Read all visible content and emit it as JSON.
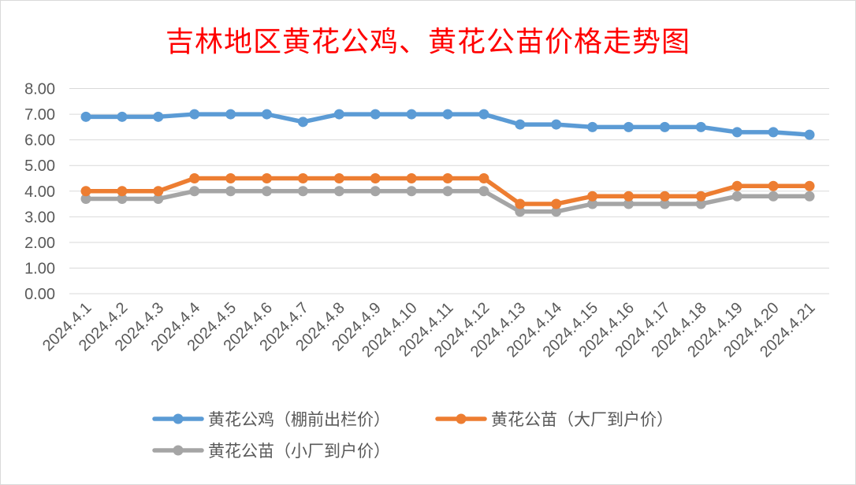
{
  "chart_data": {
    "type": "line",
    "title": "吉林地区黄花公鸡、黄花公苗价格走势图",
    "x": [
      "2024.4.1",
      "2024.4.2",
      "2024.4.3",
      "2024.4.4",
      "2024.4.5",
      "2024.4.6",
      "2024.4.7",
      "2024.4.8",
      "2024.4.9",
      "2024.4.10",
      "2024.4.11",
      "2024.4.12",
      "2024.4.13",
      "2024.4.14",
      "2024.4.15",
      "2024.4.16",
      "2024.4.17",
      "2024.4.18",
      "2024.4.19",
      "2024.4.20",
      "2024.4.21"
    ],
    "y_ticks": [
      "0.00",
      "1.00",
      "2.00",
      "3.00",
      "4.00",
      "5.00",
      "6.00",
      "7.00",
      "8.00"
    ],
    "ylim": [
      0,
      8
    ],
    "grid": "horizontal",
    "legend_position": "bottom",
    "series": [
      {
        "name": "黄花公鸡（棚前出栏价）",
        "color": "#5b9bd5",
        "values": [
          6.9,
          6.9,
          6.9,
          7.0,
          7.0,
          7.0,
          6.7,
          7.0,
          7.0,
          7.0,
          7.0,
          7.0,
          6.6,
          6.6,
          6.5,
          6.5,
          6.5,
          6.5,
          6.3,
          6.3,
          6.2
        ]
      },
      {
        "name": "黄花公苗（大厂到户价）",
        "color": "#ed7d31",
        "values": [
          4.0,
          4.0,
          4.0,
          4.5,
          4.5,
          4.5,
          4.5,
          4.5,
          4.5,
          4.5,
          4.5,
          4.5,
          3.5,
          3.5,
          3.8,
          3.8,
          3.8,
          3.8,
          4.2,
          4.2,
          4.2
        ]
      },
      {
        "name": "黄花公苗（小厂到户价）",
        "color": "#a5a5a5",
        "values": [
          3.7,
          3.7,
          3.7,
          4.0,
          4.0,
          4.0,
          4.0,
          4.0,
          4.0,
          4.0,
          4.0,
          4.0,
          3.2,
          3.2,
          3.5,
          3.5,
          3.5,
          3.5,
          3.8,
          3.8,
          3.8
        ]
      }
    ]
  }
}
